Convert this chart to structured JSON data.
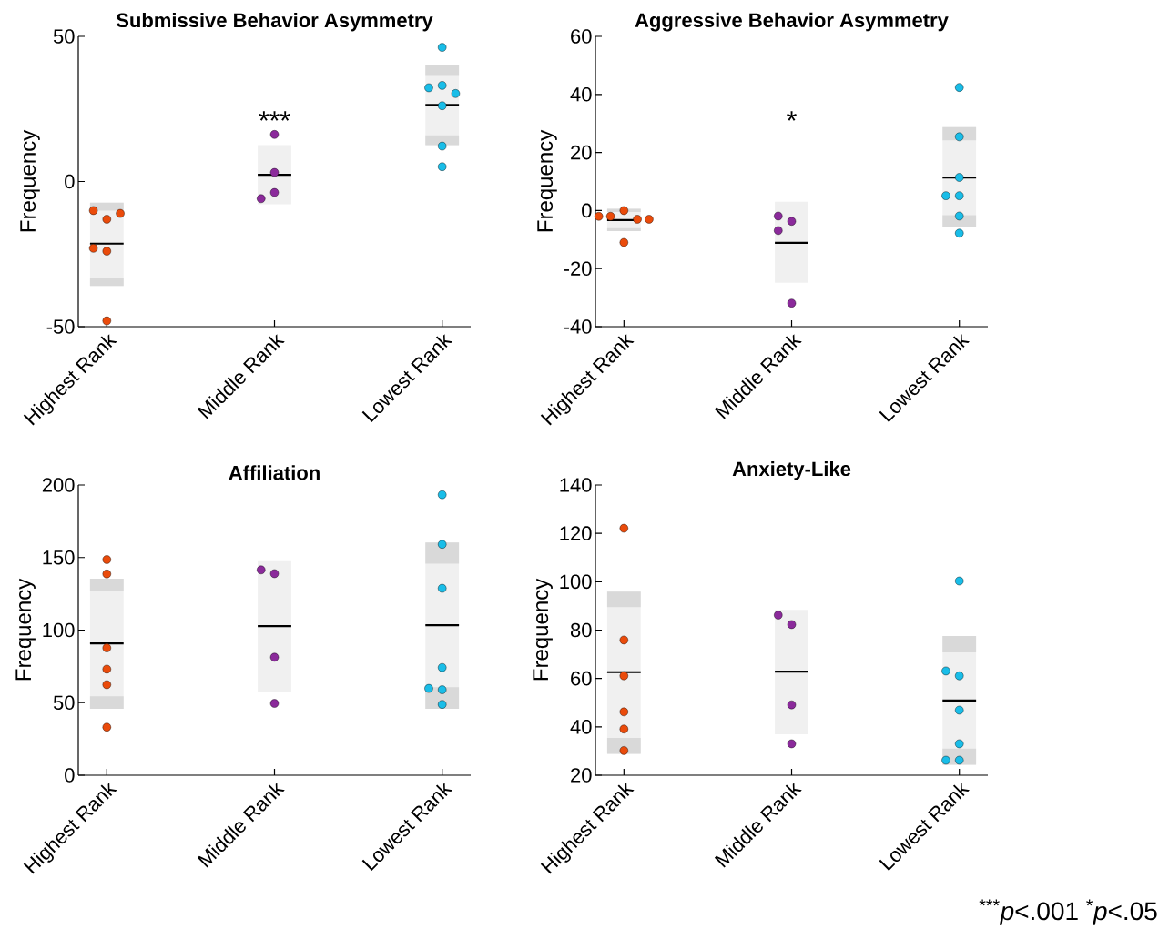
{
  "chart_data": [
    {
      "type": "box",
      "title": "Submissive Behavior Asymmetry",
      "ylabel": "Frequency",
      "categories": [
        "Highest Rank",
        "Middle Rank",
        "Lowest Rank"
      ],
      "ylim": [
        -50,
        50
      ],
      "yticks": [
        -50,
        0,
        50
      ],
      "boxes": [
        {
          "low": -36,
          "q1": -36,
          "median": -21.4,
          "q3": -7.3,
          "high": -7.3
        },
        {
          "low": -7.8,
          "q1": -7.8,
          "median": 2.3,
          "q3": 12.5,
          "high": 12.5
        },
        {
          "low": 12.5,
          "q1": 12.5,
          "median": 26.4,
          "q3": 40.3,
          "high": 40.3
        }
      ],
      "series": [
        {
          "type": "bar",
          "color": "#d9d9d9",
          "base": [
            -36,
            null,
            12.5
          ],
          "values": [
            2.8,
            null,
            3.4
          ]
        },
        {
          "type": "bar",
          "color": "#d9d9d9",
          "base": [
            -10,
            null,
            36.7
          ],
          "values": [
            2.7,
            null,
            3.6
          ]
        },
        {
          "type": "scatter",
          "color": "#ea4b0b",
          "x": [
            "Highest Rank",
            "Highest Rank",
            "Highest Rank",
            "Highest Rank",
            "Highest Rank",
            "Highest Rank"
          ],
          "values": [
            -13,
            -10,
            -11,
            -24,
            -23,
            -48
          ]
        },
        {
          "type": "scatter",
          "color": "#8b2a9b",
          "x": [
            "Middle Rank",
            "Middle Rank",
            "Middle Rank",
            "Middle Rank"
          ],
          "values": [
            16.2,
            3.1,
            -3.8,
            -5.9
          ]
        },
        {
          "type": "scatter",
          "color": "#19bde8",
          "x": [
            "Lowest Rank",
            "Lowest Rank",
            "Lowest Rank",
            "Lowest Rank",
            "Lowest Rank",
            "Lowest Rank",
            "Lowest Rank"
          ],
          "values": [
            46.2,
            33.1,
            32.3,
            30.3,
            26.1,
            12.2,
            5.1
          ]
        }
      ],
      "annotations": [
        "***"
      ]
    },
    {
      "type": "box",
      "title": "Aggressive Behavior Asymmetry",
      "ylabel": "Frequency",
      "categories": [
        "Highest Rank",
        "Middle Rank",
        "Lowest Rank"
      ],
      "ylim": [
        -40,
        60
      ],
      "yticks": [
        -40,
        -20,
        0,
        20,
        40,
        60
      ],
      "boxes": [
        {
          "low": -7.1,
          "q1": -7.1,
          "median": -3.3,
          "q3": 0.6,
          "high": 0.6
        },
        {
          "low": -24.9,
          "q1": -24.9,
          "median": -11.1,
          "q3": 3,
          "high": 3
        },
        {
          "low": -5.8,
          "q1": -5.8,
          "median": 11.4,
          "q3": 28.7,
          "high": 28.7
        }
      ],
      "series": [
        {
          "type": "bar",
          "color": "#d9d9d9",
          "base": [
            -7.1,
            null,
            -5.8
          ],
          "values": [
            1,
            null,
            4.2
          ]
        },
        {
          "type": "bar",
          "color": "#d9d9d9",
          "base": [
            -0.5,
            null,
            24.2
          ],
          "values": [
            1.1,
            null,
            4.5
          ]
        },
        {
          "type": "scatter",
          "color": "#ea4b0b",
          "x": [
            "Highest Rank",
            "Highest Rank",
            "Highest Rank",
            "Highest Rank",
            "Highest Rank",
            "Highest Rank"
          ],
          "values": [
            0,
            -2,
            -3,
            -2,
            -3,
            -11
          ]
        },
        {
          "type": "scatter",
          "color": "#8b2a9b",
          "x": [
            "Middle Rank",
            "Middle Rank",
            "Middle Rank",
            "Middle Rank"
          ],
          "values": [
            -3.7,
            -6.9,
            -1.9,
            -31.9
          ]
        },
        {
          "type": "scatter",
          "color": "#19bde8",
          "x": [
            "Lowest Rank",
            "Lowest Rank",
            "Lowest Rank",
            "Lowest Rank",
            "Lowest Rank",
            "Lowest Rank",
            "Lowest Rank"
          ],
          "values": [
            42.4,
            25.4,
            11.4,
            5.1,
            5.1,
            -1.9,
            -7.8
          ]
        }
      ],
      "annotations": [
        "*"
      ]
    },
    {
      "type": "box",
      "title": "Affiliation",
      "ylabel": "Frequency",
      "categories": [
        "Highest Rank",
        "Middle Rank",
        "Lowest Rank"
      ],
      "ylim": [
        0,
        200
      ],
      "yticks": [
        0,
        50,
        100,
        150,
        200
      ],
      "boxes": [
        {
          "low": 45.8,
          "q1": 45.8,
          "median": 90.8,
          "q3": 135.5,
          "high": 135.5
        },
        {
          "low": 57.6,
          "q1": 57.6,
          "median": 102.8,
          "q3": 147.5,
          "high": 147.5
        },
        {
          "low": 45.8,
          "q1": 45.8,
          "median": 103.4,
          "q3": 160.4,
          "high": 160.4
        }
      ],
      "series": [
        {
          "type": "bar",
          "color": "#d9d9d9",
          "base": [
            45.8,
            null,
            45.8
          ],
          "values": [
            8.6,
            null,
            14.8
          ]
        },
        {
          "type": "bar",
          "color": "#d9d9d9",
          "base": [
            126.7,
            null,
            145.8
          ],
          "values": [
            8.8,
            null,
            14.6
          ]
        },
        {
          "type": "scatter",
          "color": "#ea4b0b",
          "x": [
            "Highest Rank",
            "Highest Rank",
            "Highest Rank",
            "Highest Rank",
            "Highest Rank",
            "Highest Rank"
          ],
          "values": [
            138.7,
            148.6,
            87.7,
            73.1,
            62.4,
            33.1
          ]
        },
        {
          "type": "scatter",
          "color": "#8b2a9b",
          "x": [
            "Middle Rank",
            "Middle Rank",
            "Middle Rank",
            "Middle Rank"
          ],
          "values": [
            138.9,
            141.5,
            81.3,
            49.5
          ]
        },
        {
          "type": "scatter",
          "color": "#19bde8",
          "x": [
            "Lowest Rank",
            "Lowest Rank",
            "Lowest Rank",
            "Lowest Rank",
            "Lowest Rank",
            "Lowest Rank",
            "Lowest Rank"
          ],
          "values": [
            193.3,
            159.1,
            128.8,
            74.2,
            58.9,
            59.8,
            48.8
          ]
        }
      ]
    },
    {
      "type": "box",
      "title": "Anxiety-Like",
      "ylabel": "Frequency",
      "categories": [
        "Highest Rank",
        "Middle Rank",
        "Lowest Rank"
      ],
      "ylim": [
        20,
        140
      ],
      "yticks": [
        20,
        40,
        60,
        80,
        100,
        120,
        140
      ],
      "boxes": [
        {
          "low": 28.8,
          "q1": 28.8,
          "median": 62.6,
          "q3": 95.9,
          "high": 95.9
        },
        {
          "low": 36.9,
          "q1": 36.9,
          "median": 62.8,
          "q3": 88.4,
          "high": 88.4
        },
        {
          "low": 24.3,
          "q1": 24.3,
          "median": 50.9,
          "q3": 77.6,
          "high": 77.6
        }
      ],
      "series": [
        {
          "type": "bar",
          "color": "#d9d9d9",
          "base": [
            28.8,
            null,
            24.3
          ],
          "values": [
            6.6,
            null,
            6.7
          ]
        },
        {
          "type": "bar",
          "color": "#d9d9d9",
          "base": [
            89.5,
            null,
            70.8
          ],
          "values": [
            6.4,
            null,
            6.8
          ]
        },
        {
          "type": "scatter",
          "color": "#ea4b0b",
          "x": [
            "Highest Rank",
            "Highest Rank",
            "Highest Rank",
            "Highest Rank",
            "Highest Rank",
            "Highest Rank"
          ],
          "values": [
            122.1,
            75.9,
            61.1,
            46.2,
            39.1,
            30.2
          ]
        },
        {
          "type": "scatter",
          "color": "#8b2a9b",
          "x": [
            "Middle Rank",
            "Middle Rank",
            "Middle Rank",
            "Middle Rank"
          ],
          "values": [
            82.3,
            86.2,
            49.1,
            33
          ]
        },
        {
          "type": "scatter",
          "color": "#19bde8",
          "x": [
            "Lowest Rank",
            "Lowest Rank",
            "Lowest Rank",
            "Lowest Rank",
            "Lowest Rank",
            "Lowest Rank",
            "Lowest Rank"
          ],
          "values": [
            100.3,
            61.1,
            63.1,
            46.9,
            33,
            26.2,
            26.2
          ]
        }
      ],
      "annotations": [
        "$^{***}$*p*<.001  $^{*}$*p*<.05"
      ]
    }
  ]
}
